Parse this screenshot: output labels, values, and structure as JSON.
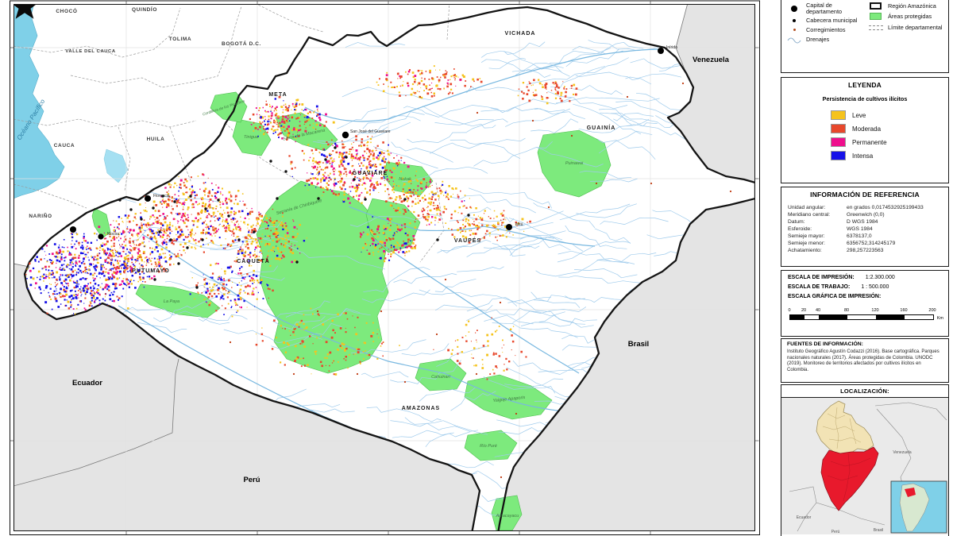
{
  "panel": {
    "symbols": {
      "capital": "Capital de departamento",
      "cabecera": "Cabecera municipal",
      "corregimientos": "Corregimientos",
      "drenajes": "Drenajes",
      "region": "Región Amazónica",
      "areas": "Áreas protegidas",
      "limite": "Límite departamental"
    },
    "leyenda": {
      "title": "LEYENDA",
      "subtitle": "Persistencia de cultivos ilícitos",
      "items": [
        {
          "label": "Leve",
          "color": "#F5C31D"
        },
        {
          "label": "Moderada",
          "color": "#E8482C"
        },
        {
          "label": "Permanente",
          "color": "#EF0F8D"
        },
        {
          "label": "Intensa",
          "color": "#1611E8"
        }
      ]
    },
    "referencia": {
      "title": "INFORMACIÓN DE REFERENCIA",
      "rows": [
        {
          "label": "Unidad angular:",
          "value": "en grados 0,0174532925199433"
        },
        {
          "label": "Meridiano central:",
          "value": "Greenwich (0,0)"
        },
        {
          "label": "Datum:",
          "value": "D WGS 1984"
        },
        {
          "label": "Esferoide:",
          "value": "WGS 1984"
        },
        {
          "label": "Semieje mayor:",
          "value": "6378137,0"
        },
        {
          "label": "Semieje menor:",
          "value": "6356752,314245179"
        },
        {
          "label": "Achatamiento:",
          "value": "298,257223563"
        }
      ]
    },
    "escala": {
      "impresion_label": "ESCALA DE IMPRESIÓN:",
      "impresion_value": "1:2.300.000",
      "trabajo_label": "ESCALA DE TRABAJO:",
      "trabajo_value": "1 : 500.000",
      "grafica_label": "ESCALA GRÁFICA DE IMPRESIÓN:",
      "ticks": [
        "0",
        "20",
        "40",
        "80",
        "120",
        "160",
        "200"
      ],
      "unit": "Km"
    },
    "fuentes": {
      "title": "FUENTES DE INFORMACIÓN:",
      "text": "Instituto Geográfico Agustín Codazzi (2016). Base cartográfica. Parques nacionales naturales (2017). Áreas protegidas de Colombia. UNODC (2019). Monitoreo de territorios afectados por cultivos ilícitos en Colombia."
    },
    "localizacion": {
      "title": "LOCALIZACIÓN:",
      "labels": {
        "venezuela": "Venezuela",
        "ecuador": "Ecuador",
        "peru": "Perú",
        "brasil": "Brasil"
      }
    }
  },
  "map": {
    "ocean": "Océano Pacífico",
    "countries": {
      "venezuela": "Venezuela",
      "brasil": "Brasil",
      "ecuador": "Ecuador",
      "peru": "Perú"
    },
    "depts_outside": [
      "CHOCÓ",
      "QUINDÍO",
      "TOLIMA",
      "BOGOTÁ D.C.",
      "VALLE DEL CAUCA",
      "CAUCA",
      "HUILA",
      "NARIÑO"
    ],
    "depts_region": [
      "META",
      "VICHADA",
      "GUAINÍA",
      "GUAVIARE",
      "VAUPÉS",
      "CAQUETÁ",
      "PUTUMAYO",
      "AMAZONAS"
    ],
    "protected": [
      "Serranía de Chiribiquete",
      "Sierra de la Macarena",
      "Tinigua",
      "Cordillera de los Picachos",
      "Nukak",
      "Puinawai",
      "La Paya",
      "Yaigoje Apaporis",
      "Amacayacu",
      "Cahuinarí",
      "Río Puré"
    ],
    "capitals": [
      "San José del Guaviare",
      "Florencia",
      "Mocoa",
      "Mitú",
      "Inírida"
    ],
    "colors": {
      "ocean": "#7FD0E8",
      "bay": "#A5E0F2",
      "neighbor": "#E4E4E4",
      "river": "#9FCBEC",
      "protected": "#7DEA7D",
      "amazon_red": "#E8192C",
      "colombia_cream": "#F2E3B5",
      "inset_sea": "#7FD0E8"
    }
  }
}
